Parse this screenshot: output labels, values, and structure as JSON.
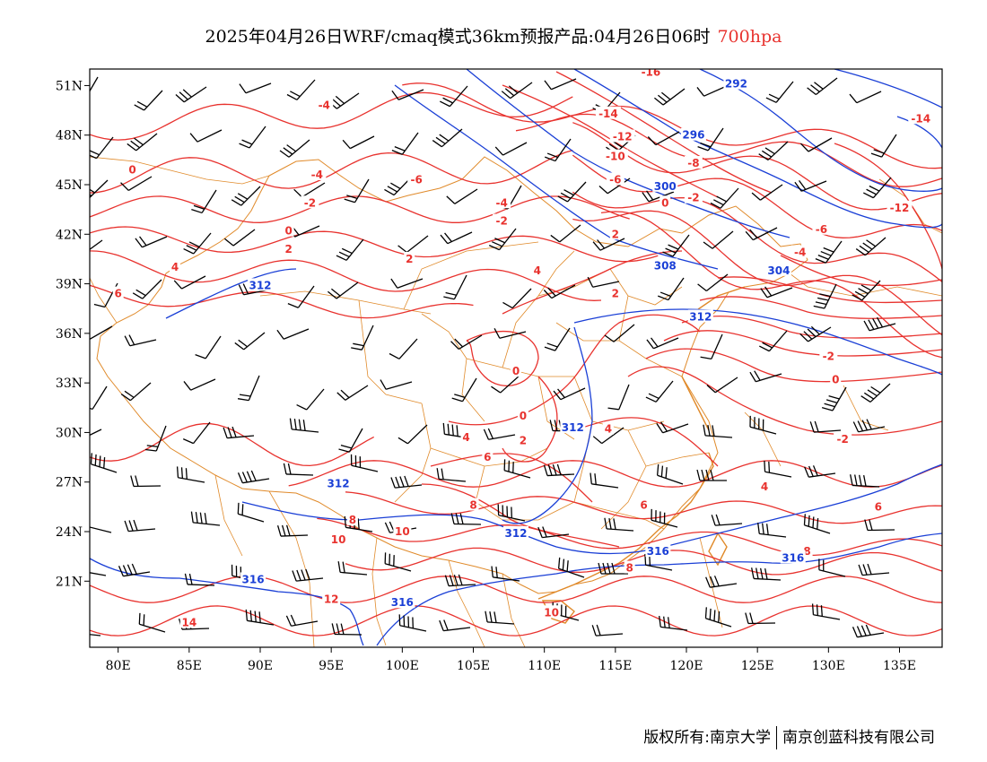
{
  "title": {
    "main": "2025年04月26日WRF/cmaq模式36km预报产品:04月26日06时",
    "level": "700hpa"
  },
  "footer": {
    "left": "版权所有:南京大学",
    "right": "南京创蓝科技有限公司"
  },
  "map": {
    "lon_range": [
      78,
      138
    ],
    "lat_range": [
      17,
      52
    ],
    "x_ticks": [
      "80E",
      "85E",
      "90E",
      "95E",
      "100E",
      "105E",
      "110E",
      "115E",
      "120E",
      "125E",
      "130E",
      "135E"
    ],
    "y_ticks": [
      "51N",
      "48N",
      "45N",
      "42N",
      "39N",
      "36N",
      "33N",
      "30N",
      "27N",
      "24N",
      "21N"
    ],
    "colors": {
      "temperature": "#e8322e",
      "geopotential": "#1a3fd6",
      "borders": "#e08a2a",
      "wind": "#000000"
    },
    "temperature_labels": [
      {
        "text": "-16",
        "lon": 117.5,
        "lat": 51.8
      },
      {
        "text": "-14",
        "lon": 114.5,
        "lat": 49.3
      },
      {
        "text": "-12",
        "lon": 115.5,
        "lat": 47.9
      },
      {
        "text": "-10",
        "lon": 115.0,
        "lat": 46.7
      },
      {
        "text": "-8",
        "lon": 120.5,
        "lat": 46.3
      },
      {
        "text": "-6",
        "lon": 115.0,
        "lat": 45.3
      },
      {
        "text": "-4",
        "lon": 94.5,
        "lat": 49.8
      },
      {
        "text": "0",
        "lon": 81.0,
        "lat": 45.9
      },
      {
        "text": "-4",
        "lon": 94.0,
        "lat": 45.6
      },
      {
        "text": "-6",
        "lon": 101.0,
        "lat": 45.3
      },
      {
        "text": "-2",
        "lon": 93.5,
        "lat": 43.9
      },
      {
        "text": "-4",
        "lon": 107.0,
        "lat": 43.9
      },
      {
        "text": "-2",
        "lon": 107.0,
        "lat": 42.8
      },
      {
        "text": "0",
        "lon": 92.0,
        "lat": 42.2
      },
      {
        "text": "2",
        "lon": 92.0,
        "lat": 41.1
      },
      {
        "text": "-2",
        "lon": 120.5,
        "lat": 44.2
      },
      {
        "text": "0",
        "lon": 118.5,
        "lat": 43.9
      },
      {
        "text": "2",
        "lon": 115.0,
        "lat": 42.0
      },
      {
        "text": "2",
        "lon": 100.5,
        "lat": 40.5
      },
      {
        "text": "4",
        "lon": 84.0,
        "lat": 40.0
      },
      {
        "text": "6",
        "lon": 80.0,
        "lat": 38.4
      },
      {
        "text": "4",
        "lon": 109.5,
        "lat": 39.8
      },
      {
        "text": "2",
        "lon": 115.0,
        "lat": 38.4
      },
      {
        "text": "-12",
        "lon": 135.0,
        "lat": 43.6
      },
      {
        "text": "-14",
        "lon": 136.5,
        "lat": 49.0
      },
      {
        "text": "-6",
        "lon": 129.5,
        "lat": 42.3
      },
      {
        "text": "-4",
        "lon": 128.0,
        "lat": 40.9
      },
      {
        "text": "-2",
        "lon": 130.0,
        "lat": 34.6
      },
      {
        "text": "0",
        "lon": 130.5,
        "lat": 33.2
      },
      {
        "text": "-2",
        "lon": 131.0,
        "lat": 29.6
      },
      {
        "text": "0",
        "lon": 108.0,
        "lat": 33.7
      },
      {
        "text": "0",
        "lon": 108.5,
        "lat": 31.0
      },
      {
        "text": "2",
        "lon": 108.5,
        "lat": 29.5
      },
      {
        "text": "4",
        "lon": 114.5,
        "lat": 30.2
      },
      {
        "text": "4",
        "lon": 104.5,
        "lat": 29.7
      },
      {
        "text": "6",
        "lon": 106.0,
        "lat": 28.5
      },
      {
        "text": "4",
        "lon": 125.5,
        "lat": 26.7
      },
      {
        "text": "6",
        "lon": 133.5,
        "lat": 25.5
      },
      {
        "text": "6",
        "lon": 117.0,
        "lat": 25.6
      },
      {
        "text": "8",
        "lon": 105.0,
        "lat": 25.6
      },
      {
        "text": "8",
        "lon": 96.5,
        "lat": 24.7
      },
      {
        "text": "10",
        "lon": 95.5,
        "lat": 23.5
      },
      {
        "text": "10",
        "lon": 100.0,
        "lat": 24.0
      },
      {
        "text": "8",
        "lon": 128.5,
        "lat": 22.8
      },
      {
        "text": "8",
        "lon": 116.0,
        "lat": 21.8
      },
      {
        "text": "12",
        "lon": 95.0,
        "lat": 19.9
      },
      {
        "text": "10",
        "lon": 110.5,
        "lat": 19.1
      },
      {
        "text": "14",
        "lon": 85.0,
        "lat": 18.5
      }
    ],
    "height_labels": [
      {
        "text": "292",
        "lon": 123.5,
        "lat": 51.1
      },
      {
        "text": "296",
        "lon": 120.5,
        "lat": 48.0
      },
      {
        "text": "300",
        "lon": 118.5,
        "lat": 44.9
      },
      {
        "text": "304",
        "lon": 126.5,
        "lat": 39.8
      },
      {
        "text": "308",
        "lon": 118.5,
        "lat": 40.1
      },
      {
        "text": "312",
        "lon": 90.0,
        "lat": 38.9
      },
      {
        "text": "312",
        "lon": 121.0,
        "lat": 37.0
      },
      {
        "text": "312",
        "lon": 112.0,
        "lat": 30.3
      },
      {
        "text": "312",
        "lon": 95.5,
        "lat": 26.9
      },
      {
        "text": "312",
        "lon": 108.0,
        "lat": 23.9
      },
      {
        "text": "316",
        "lon": 118.0,
        "lat": 22.8
      },
      {
        "text": "316",
        "lon": 127.5,
        "lat": 22.4
      },
      {
        "text": "316",
        "lon": 89.5,
        "lat": 21.1
      },
      {
        "text": "316",
        "lon": 100.0,
        "lat": 19.7
      }
    ]
  }
}
